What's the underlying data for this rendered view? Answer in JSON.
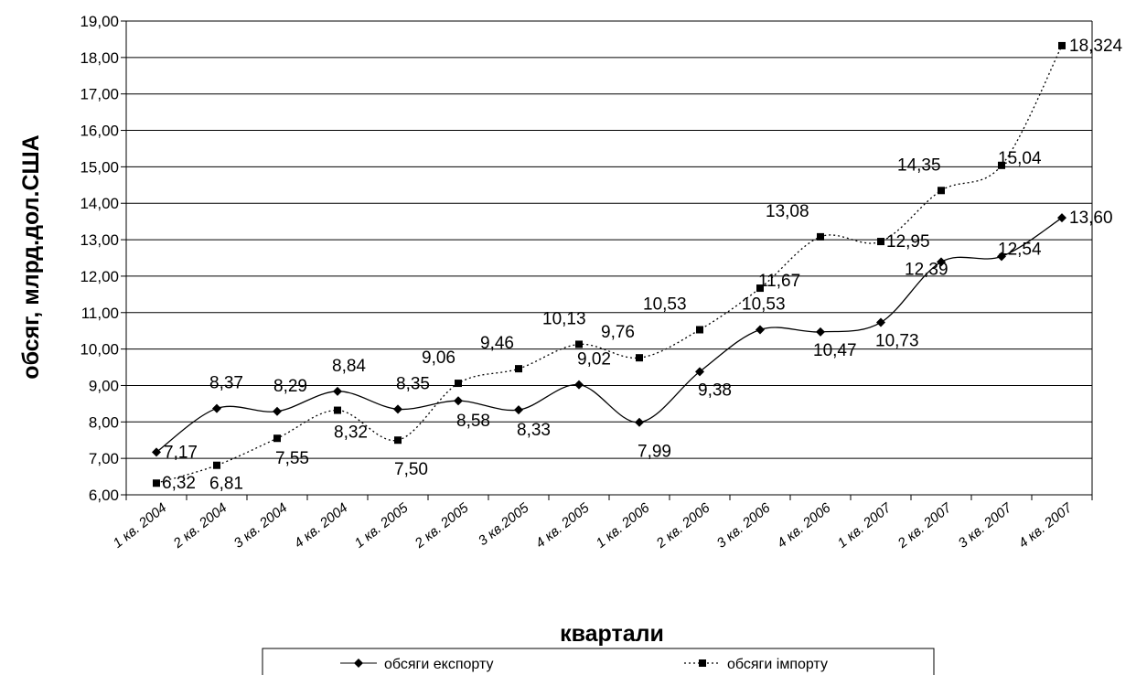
{
  "chart_data": {
    "type": "line",
    "xlabel": "квартали",
    "ylabel": "обсяг, млрд.дол.США",
    "ylim": [
      6,
      19
    ],
    "y_ticks": [
      "6,00",
      "7,00",
      "8,00",
      "9,00",
      "10,00",
      "11,00",
      "12,00",
      "13,00",
      "14,00",
      "15,00",
      "16,00",
      "17,00",
      "18,00",
      "19,00"
    ],
    "grid": "horizontal",
    "legend_position": "bottom",
    "categories": [
      "1 кв. 2004",
      "2 кв. 2004",
      "3 кв. 2004",
      "4 кв. 2004",
      "1 кв. 2005",
      "2 кв. 2005",
      "3 кв.2005",
      "4 кв. 2005",
      "1 кв. 2006",
      "2 кв. 2006",
      "3 кв. 2006",
      "4 кв. 2006",
      "1 кв. 2007",
      "2 кв. 2007",
      "3 кв. 2007",
      "4 кв. 2007"
    ],
    "series": [
      {
        "name": "обсяги експорту",
        "marker": "diamond",
        "line_style": "solid",
        "values": [
          7.17,
          8.37,
          8.29,
          8.84,
          8.35,
          8.58,
          8.33,
          9.02,
          7.99,
          9.38,
          10.53,
          10.47,
          10.73,
          12.39,
          12.54,
          13.6
        ],
        "labels": [
          "7,17",
          "8,37",
          "8,29",
          "8,84",
          "8,35",
          "8,58",
          "8,33",
          "9,02",
          "7,99",
          "9,38",
          "10,53",
          "10,47",
          "10,73",
          "12,39",
          "12,54",
          "13,60"
        ]
      },
      {
        "name": "обсяги імпорту",
        "marker": "square",
        "line_style": "dotted",
        "values": [
          6.32,
          6.81,
          7.55,
          8.32,
          7.5,
          9.06,
          9.46,
          10.13,
          9.76,
          10.53,
          11.67,
          13.08,
          12.95,
          14.35,
          15.04,
          18.324
        ],
        "labels": [
          "6,32",
          "6,81",
          "7,55",
          "8,32",
          "7,50",
          "9,06",
          "9,46",
          "10,13",
          "9,76",
          "10,53",
          "11,67",
          "13,08",
          "12,95",
          "14,35",
          "15,04",
          "18,324"
        ]
      }
    ]
  }
}
